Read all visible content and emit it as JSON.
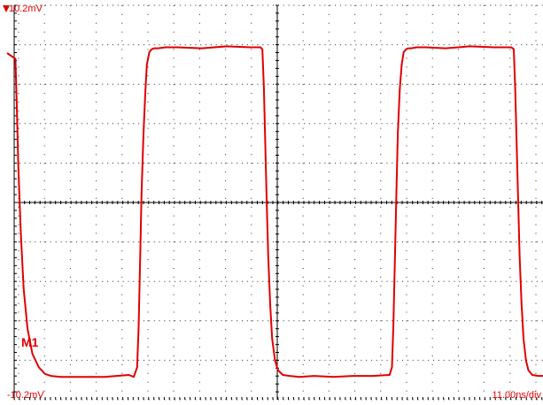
{
  "display": {
    "top_reference": "10.2mV",
    "bottom_reference": "-10.2mV",
    "timebase": "11.00ns/div",
    "marker": "M1"
  },
  "colors": {
    "trace": "#e10000",
    "grid_dots": "#2a2a2a",
    "axis": "#000000",
    "background": "#ffffff"
  },
  "chart_data": {
    "type": "line",
    "title": "",
    "xlabel": "",
    "ylabel": "",
    "xlim": [
      -55,
      55
    ],
    "ylim": [
      -10.2,
      10.2
    ],
    "grid": true,
    "series": [
      {
        "values_x": [
          -55,
          -53.3,
          -53.0,
          -52.7,
          -52.2,
          -51.6,
          -50.8,
          -49.8,
          -48.5,
          -47.2,
          -46.0,
          -44.0,
          -40.0,
          -35.0,
          -30.0,
          -29.0,
          -28.3,
          -28.0,
          -27.7,
          -27.4,
          -27.0,
          -26.6,
          -26.3,
          -25.8,
          -25.3,
          -24.8,
          -24.0,
          -22.5,
          -20.0,
          -15.0,
          -10.0,
          -5.0,
          -3.0,
          -2.6,
          -2.3,
          -2.0,
          -1.7,
          -1.4,
          -1.0,
          -0.6,
          0.0,
          0.6,
          1.6,
          3.0,
          5.0,
          8.0,
          12.0,
          16.0,
          20.0,
          23.5,
          24.0,
          24.3,
          24.6,
          24.9,
          25.2,
          25.6,
          26.0,
          26.4,
          26.9,
          27.4,
          28.0,
          29.0,
          31.0,
          35.0,
          40.0,
          45.0,
          48.5,
          49.0,
          49.3,
          49.6,
          49.9,
          50.2,
          50.6,
          51.0,
          51.5,
          52.0,
          52.8,
          54.0,
          55.0
        ],
        "values_y": [
          7.8,
          7.5,
          5.0,
          2.0,
          -1.5,
          -4.5,
          -6.6,
          -7.9,
          -8.6,
          -8.95,
          -9.05,
          -9.1,
          -9.1,
          -9.1,
          -9.0,
          -9.1,
          -8.6,
          -6.5,
          -3.0,
          0.5,
          3.6,
          5.9,
          7.2,
          7.85,
          8.0,
          8.05,
          8.05,
          8.1,
          8.1,
          8.05,
          8.15,
          8.1,
          8.1,
          8.0,
          6.0,
          3.0,
          0.0,
          -2.8,
          -5.3,
          -7.1,
          -8.25,
          -8.75,
          -9.0,
          -9.05,
          -9.1,
          -9.05,
          -9.1,
          -9.05,
          -9.05,
          -9.0,
          -8.6,
          -6.4,
          -3.0,
          0.5,
          3.6,
          5.9,
          7.2,
          7.85,
          8.0,
          8.05,
          8.05,
          8.1,
          8.1,
          8.05,
          8.15,
          8.1,
          8.1,
          8.0,
          6.0,
          3.0,
          0.0,
          -2.8,
          -5.3,
          -7.1,
          -8.25,
          -8.75,
          -9.0,
          -9.05,
          -9.05
        ]
      }
    ]
  }
}
